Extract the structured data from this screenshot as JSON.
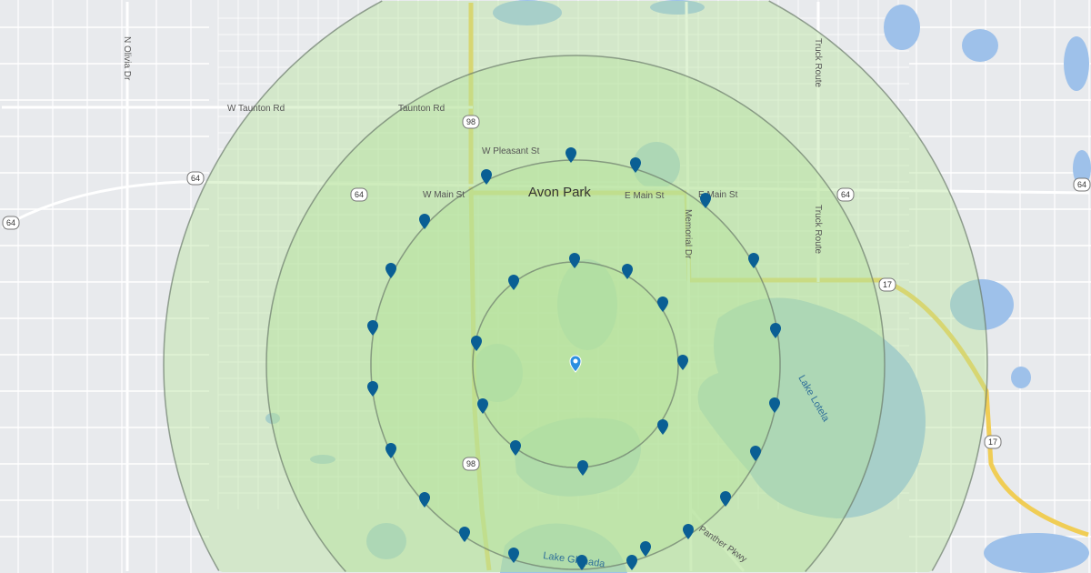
{
  "map": {
    "city_label": "Avon Park",
    "street_labels": [
      {
        "text": "N Olivia Dr"
      },
      {
        "text": "W Taunton Rd"
      },
      {
        "text": "Taunton Rd"
      },
      {
        "text": "W Pleasant St"
      },
      {
        "text": "W Main St"
      },
      {
        "text": "E Main St"
      },
      {
        "text": "E Main St"
      },
      {
        "text": "Memorial Dr"
      },
      {
        "text": "Truck Route"
      },
      {
        "text": "Truck Route"
      },
      {
        "text": "Panther Pkwy"
      }
    ],
    "lake_labels": [
      {
        "text": "Lake Lotela"
      },
      {
        "text": "Lake Glenada"
      }
    ],
    "route_shields": [
      "98",
      "98",
      "64",
      "64",
      "64",
      "64",
      "64",
      "17",
      "17"
    ],
    "radius_rings": 4,
    "colors": {
      "land": "#e8eaed",
      "water": "#9ec1ea",
      "ring_fill": "#b6e39a",
      "ring_stroke": "#6b7a6b",
      "highway": "#f5d96b",
      "marker": "#0a5f94",
      "center_marker": "#2b8fe0"
    }
  }
}
